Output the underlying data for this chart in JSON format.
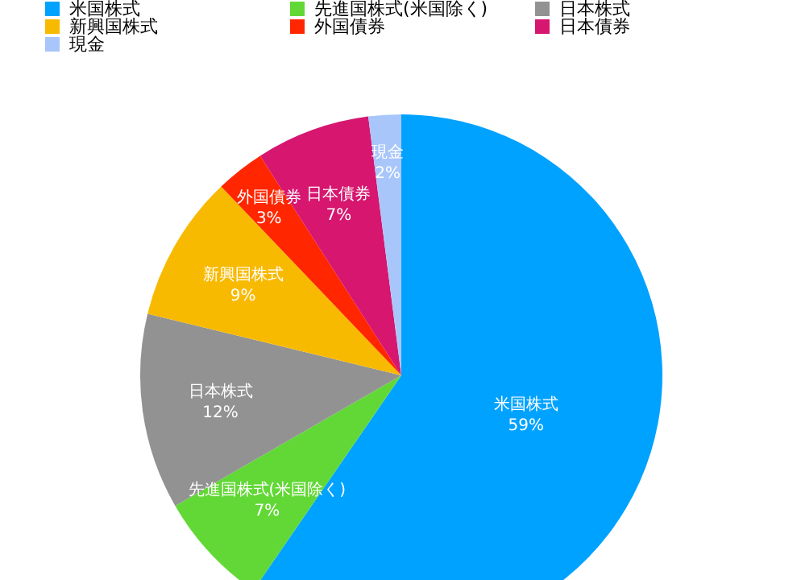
{
  "chart_data": {
    "type": "pie",
    "categories": [
      "米国株式",
      "先進国株式(米国除く)",
      "日本株式",
      "新興国株式",
      "外国債券",
      "日本債券",
      "現金"
    ],
    "values": [
      59,
      7,
      12,
      9,
      3,
      7,
      2
    ],
    "value_labels": [
      "59%",
      "7%",
      "12%",
      "9%",
      "3%",
      "7%",
      "2%"
    ],
    "colors": [
      "#00a2ff",
      "#62d836",
      "#929292",
      "#f8ba00",
      "#ff2600",
      "#d6166f",
      "#a8c6fa"
    ],
    "legend": "top"
  }
}
